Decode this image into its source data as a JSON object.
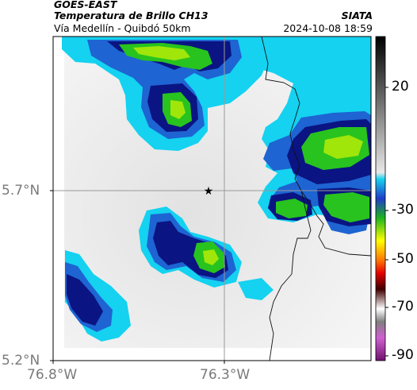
{
  "header": {
    "title": "GOES-EAST",
    "subtitle": "Temperatura de Brillo CH13",
    "organization": "SIATA",
    "area": "Vía Medellín - Quibdó 50km",
    "datetime": "2024-10-08 18:59"
  },
  "map": {
    "lat_ticks": [
      "5.7°N",
      "5.2°N"
    ],
    "lon_ticks": [
      "76.8°W",
      "76.3°W"
    ],
    "marker": "star-icon",
    "colorbar_ticks": [
      "20",
      "-30",
      "-50",
      "-70",
      "-90"
    ],
    "colors": {
      "background": "#f0f0f0",
      "cyan": "#14d2f0",
      "blue": "#1e64d2",
      "navy": "#0a1482",
      "green": "#28c31e",
      "lime": "#a0e60a"
    }
  }
}
